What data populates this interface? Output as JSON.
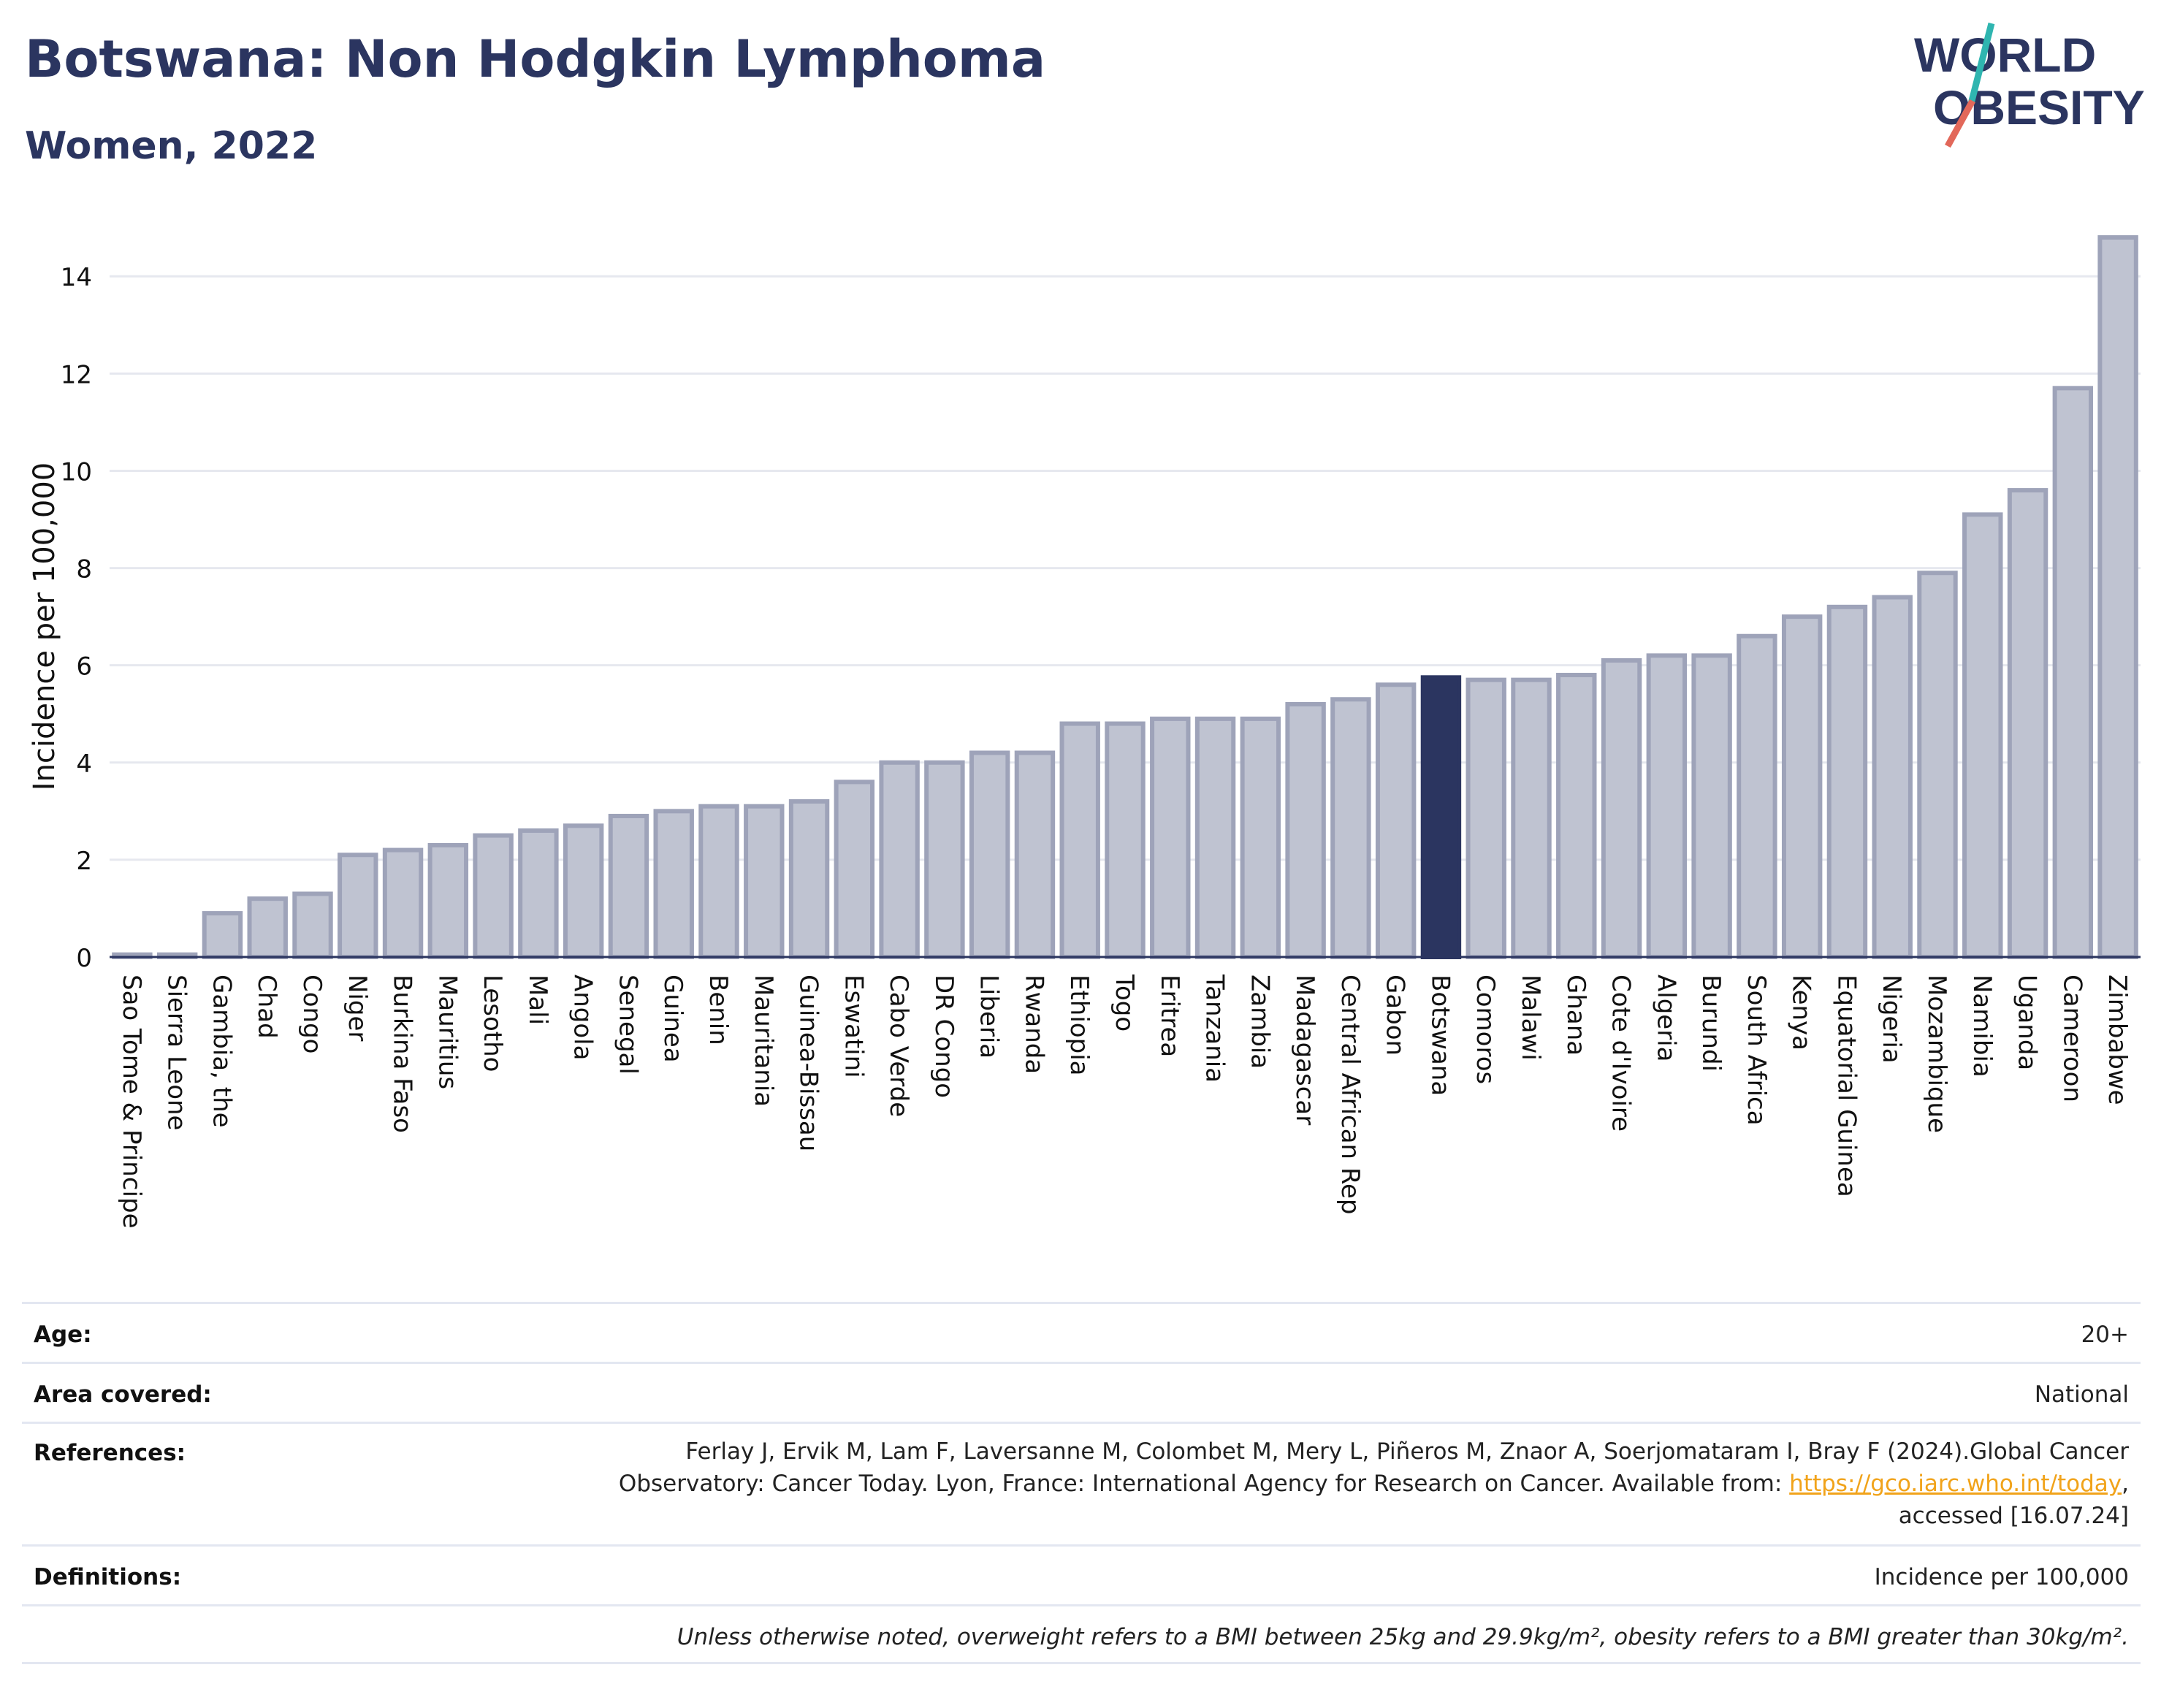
{
  "header": {
    "title": "Botswana: Non Hodgkin Lymphoma",
    "subtitle": "Women, 2022"
  },
  "logo": {
    "line1": "WORLD",
    "line2": "OBESITY"
  },
  "colors": {
    "accent": "#2b3560",
    "bar": "#bfc3d1",
    "bar_edge": "#9ea3b9",
    "highlight": "#2b3560",
    "link": "#f1a31a",
    "logo_teal": "#2fb5b0",
    "logo_red": "#e2685a"
  },
  "chart_data": {
    "type": "bar",
    "ylabel": "Incidence per 100,000",
    "ylim": [
      0,
      14.8
    ],
    "yticks": [
      0,
      2,
      4,
      6,
      8,
      10,
      12,
      14
    ],
    "grid": true,
    "highlight": "Botswana",
    "categories": [
      "Sao Tome & Principe",
      "Sierra Leone",
      "Gambia, the",
      "Chad",
      "Congo",
      "Niger",
      "Burkina Faso",
      "Mauritius",
      "Lesotho",
      "Mali",
      "Angola",
      "Senegal",
      "Guinea",
      "Benin",
      "Mauritania",
      "Guinea-Bissau",
      "Eswatini",
      "Cabo Verde",
      "DR Congo",
      "Liberia",
      "Rwanda",
      "Ethiopia",
      "Togo",
      "Eritrea",
      "Tanzania",
      "Zambia",
      "Madagascar",
      "Central African Rep",
      "Gabon",
      "Botswana",
      "Comoros",
      "Malawi",
      "Ghana",
      "Cote d'Ivoire",
      "Algeria",
      "Burundi",
      "South Africa",
      "Kenya",
      "Equatorial Guinea",
      "Nigeria",
      "Mozambique",
      "Namibia",
      "Uganda",
      "Cameroon",
      "Zimbabwe"
    ],
    "values": [
      0.05,
      0.05,
      0.9,
      1.2,
      1.3,
      2.1,
      2.2,
      2.3,
      2.5,
      2.6,
      2.7,
      2.9,
      3.0,
      3.1,
      3.1,
      3.2,
      3.6,
      4.0,
      4.0,
      4.2,
      4.2,
      4.8,
      4.8,
      4.9,
      4.9,
      4.9,
      5.2,
      5.3,
      5.6,
      5.75,
      5.7,
      5.7,
      5.8,
      6.1,
      6.2,
      6.2,
      6.6,
      7.0,
      7.2,
      7.4,
      7.9,
      9.1,
      9.6,
      11.7,
      14.8
    ]
  },
  "footer": {
    "age_label": "Age:",
    "age_value": "20+",
    "area_label": "Area covered:",
    "area_value": "National",
    "references_label": "References:",
    "references_text": "Ferlay J, Ervik M, Lam F, Laversanne M, Colombet M, Mery L, Piñeros M, Znaor A, Soerjomataram I, Bray F (2024).Global Cancer Observatory: Cancer Today. Lyon, France: International Agency for Research on Cancer. Available from: ",
    "references_link": "https://gco.iarc.who.int/today",
    "references_tail": ", accessed [16.07.24]",
    "definitions_label": "Definitions:",
    "definitions_value": "Incidence per 100,000",
    "note": "Unless otherwise noted, overweight refers to a BMI between 25kg and 29.9kg/m², obesity refers to a BMI greater than 30kg/m²."
  }
}
